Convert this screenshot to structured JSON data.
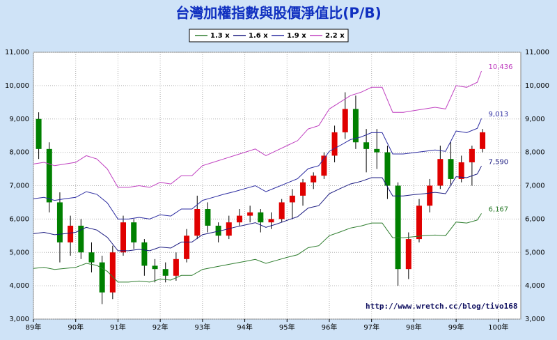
{
  "chart_data": {
    "type": "candlestick",
    "title": "台灣加權指數與股價淨值比(P/B)",
    "annotation": "http://www.wretch.cc/blog/tivo168",
    "xlim": [
      89,
      100.53
    ],
    "xticks": [
      {
        "value": 89,
        "label": "89年"
      },
      {
        "value": 90,
        "label": "90年"
      },
      {
        "value": 91,
        "label": "91年"
      },
      {
        "value": 92,
        "label": "92年"
      },
      {
        "value": 93,
        "label": "93年"
      },
      {
        "value": 94,
        "label": "94年"
      },
      {
        "value": 95,
        "label": "95年"
      },
      {
        "value": 96,
        "label": "96年"
      },
      {
        "value": 97,
        "label": "97年"
      },
      {
        "value": 98,
        "label": "98年"
      },
      {
        "value": 99,
        "label": "99年"
      },
      {
        "value": 100,
        "label": "100年"
      }
    ],
    "ylim": [
      3000,
      11000
    ],
    "yticks": [
      {
        "value": 3000,
        "label": "3,000"
      },
      {
        "value": 4000,
        "label": "4,000"
      },
      {
        "value": 5000,
        "label": "5,000"
      },
      {
        "value": 6000,
        "label": "6,000"
      },
      {
        "value": 7000,
        "label": "7,000"
      },
      {
        "value": 8000,
        "label": "8,000"
      },
      {
        "value": 9000,
        "label": "9,000"
      },
      {
        "value": 10000,
        "label": "10,000"
      },
      {
        "value": 11000,
        "label": "11,000"
      }
    ],
    "grid": true,
    "up_color": "#e00000",
    "down_color": "#008000",
    "candles": {
      "x": [
        89.125,
        89.375,
        89.625,
        89.875,
        90.125,
        90.375,
        90.625,
        90.875,
        91.125,
        91.375,
        91.625,
        91.875,
        92.125,
        92.375,
        92.625,
        92.875,
        93.125,
        93.375,
        93.625,
        93.875,
        94.125,
        94.375,
        94.625,
        94.875,
        95.125,
        95.375,
        95.625,
        95.875,
        96.125,
        96.375,
        96.625,
        96.875,
        97.125,
        97.375,
        97.625,
        97.875,
        98.125,
        98.375,
        98.625,
        98.875,
        99.125,
        99.375,
        99.625
      ],
      "open": [
        9000,
        8100,
        6500,
        5300,
        5800,
        5000,
        4700,
        3800,
        5000,
        5900,
        5300,
        4600,
        4500,
        4300,
        4800,
        5500,
        6300,
        5800,
        5500,
        5900,
        6100,
        6200,
        5900,
        6000,
        6500,
        6700,
        7100,
        7300,
        7900,
        8600,
        9300,
        8300,
        8100,
        8000,
        7000,
        4500,
        5400,
        6400,
        7000,
        7800,
        7200,
        7700,
        8100
      ],
      "high": [
        9200,
        8300,
        6800,
        6100,
        6000,
        5300,
        4900,
        5200,
        6100,
        6000,
        5400,
        4800,
        4700,
        5000,
        5700,
        6700,
        6500,
        5900,
        6100,
        6300,
        6400,
        6300,
        6200,
        6600,
        6900,
        7200,
        7400,
        8000,
        8800,
        9800,
        9700,
        8700,
        8700,
        8200,
        7100,
        5600,
        6600,
        7200,
        8200,
        8300,
        7900,
        8200,
        8700
      ],
      "low": [
        7800,
        6200,
        4700,
        4900,
        4800,
        4400,
        3450,
        3600,
        4900,
        5100,
        4300,
        4100,
        4100,
        4150,
        4700,
        5400,
        5600,
        5300,
        5400,
        5800,
        5900,
        5600,
        5700,
        5900,
        6000,
        6400,
        6900,
        7200,
        7700,
        8400,
        8100,
        7400,
        7500,
        6600,
        4000,
        4200,
        5300,
        6200,
        6900,
        7000,
        7100,
        7000,
        8000
      ],
      "close": [
        8100,
        6500,
        5300,
        5800,
        5000,
        4700,
        3800,
        5000,
        5900,
        5300,
        4600,
        4500,
        4300,
        4800,
        5500,
        6300,
        5800,
        5500,
        5900,
        6100,
        6200,
        5900,
        6000,
        6500,
        6700,
        7100,
        7300,
        7900,
        8600,
        9300,
        8300,
        8100,
        8000,
        7000,
        4500,
        5400,
        6400,
        7000,
        7800,
        7200,
        7700,
        8100,
        8600
      ]
    },
    "line_x": [
      89,
      89.25,
      89.5,
      89.75,
      90,
      90.25,
      90.5,
      90.75,
      91,
      91.25,
      91.5,
      91.75,
      92,
      92.25,
      92.5,
      92.75,
      93,
      93.25,
      93.5,
      93.75,
      94,
      94.25,
      94.5,
      94.75,
      95,
      95.25,
      95.5,
      95.75,
      96,
      96.25,
      96.5,
      96.75,
      97,
      97.25,
      97.5,
      97.75,
      98,
      98.25,
      98.5,
      98.75,
      99,
      99.25,
      99.5,
      99.6
    ],
    "series": [
      {
        "name": "1.3 x",
        "color": "#2e7d2e",
        "last_label": "6,167",
        "values": [
          4520,
          4550,
          4490,
          4520,
          4550,
          4670,
          4610,
          4430,
          4110,
          4110,
          4140,
          4110,
          4200,
          4170,
          4310,
          4310,
          4490,
          4550,
          4610,
          4670,
          4730,
          4790,
          4670,
          4760,
          4850,
          4930,
          5140,
          5200,
          5500,
          5610,
          5730,
          5790,
          5880,
          5880,
          5440,
          5440,
          5470,
          5500,
          5520,
          5500,
          5910,
          5880,
          5970,
          6167
        ]
      },
      {
        "name": "1.6 x",
        "color": "#1a1a80",
        "last_label": "7,590",
        "values": [
          5560,
          5600,
          5530,
          5560,
          5600,
          5750,
          5670,
          5450,
          5050,
          5050,
          5090,
          5050,
          5160,
          5130,
          5310,
          5310,
          5530,
          5600,
          5670,
          5750,
          5820,
          5890,
          5750,
          5850,
          5960,
          6070,
          6330,
          6400,
          6760,
          6910,
          7050,
          7130,
          7240,
          7240,
          6690,
          6690,
          6730,
          6760,
          6800,
          6760,
          7270,
          7240,
          7350,
          7590
        ]
      },
      {
        "name": "1.9 x",
        "color": "#2a2aa0",
        "last_label": "9,013",
        "values": [
          6610,
          6650,
          6560,
          6610,
          6650,
          6820,
          6740,
          6480,
          6000,
          6000,
          6050,
          6000,
          6130,
          6090,
          6300,
          6300,
          6560,
          6650,
          6740,
          6820,
          6910,
          7000,
          6820,
          6950,
          7080,
          7210,
          7510,
          7600,
          8030,
          8200,
          8380,
          8460,
          8590,
          8590,
          7950,
          7950,
          7990,
          8030,
          8070,
          8030,
          8640,
          8590,
          8720,
          9013
        ]
      },
      {
        "name": "2.2 x",
        "color": "#c040c0",
        "last_label": "10,436",
        "values": [
          7650,
          7700,
          7600,
          7650,
          7700,
          7900,
          7800,
          7500,
          6950,
          6950,
          7000,
          6950,
          7100,
          7050,
          7300,
          7300,
          7600,
          7700,
          7800,
          7900,
          8000,
          8100,
          7900,
          8050,
          8200,
          8350,
          8700,
          8800,
          9300,
          9500,
          9700,
          9800,
          9950,
          9950,
          9200,
          9200,
          9250,
          9300,
          9350,
          9300,
          10000,
          9950,
          10100,
          10436
        ]
      }
    ]
  }
}
